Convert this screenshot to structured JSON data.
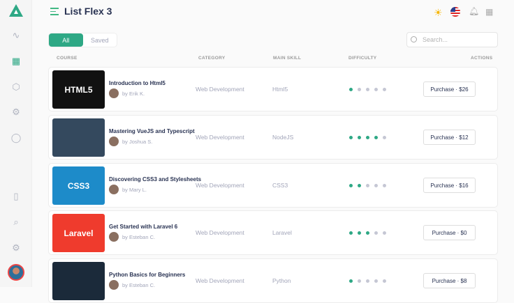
{
  "header": {
    "title": "List Flex 3"
  },
  "tabs": [
    {
      "label": "All",
      "active": true
    },
    {
      "label": "Saved",
      "active": false
    }
  ],
  "search": {
    "placeholder": "Search..."
  },
  "columns": [
    "COURSE",
    "CATEGORY",
    "MAIN SKILL",
    "DIFFICULTY",
    "ACTIONS"
  ],
  "colors": {
    "accent": "#2ea885"
  },
  "courses": [
    {
      "title": "Introduction to Html5",
      "author": "by Erik K.",
      "category": "Web Development",
      "skill": "Html5",
      "difficulty": 1,
      "action": "Purchase · $26",
      "thumb_text": "HTML5",
      "thumb_color": "#111111"
    },
    {
      "title": "Mastering VueJS and Typescript",
      "author": "by Joshua S.",
      "category": "Web Development",
      "skill": "NodeJS",
      "difficulty": 4,
      "action": "Purchase · $12",
      "thumb_text": "",
      "thumb_color": "#34495e"
    },
    {
      "title": "Discovering CSS3 and Stylesheets",
      "author": "by Mary L.",
      "category": "Web Development",
      "skill": "CSS3",
      "difficulty": 2,
      "action": "Purchase · $16",
      "thumb_text": "CSS3",
      "thumb_color": "#1d8bc9"
    },
    {
      "title": "Get Started with Laravel 6",
      "author": "by Esteban C.",
      "category": "Web Development",
      "skill": "Laravel",
      "difficulty": 3,
      "action": "Purchase · $0",
      "thumb_text": "Laravel",
      "thumb_color": "#ef3b2d"
    },
    {
      "title": "Python Basics for Beginners",
      "author": "by Esteban C.",
      "category": "Web Development",
      "skill": "Python",
      "difficulty": 1,
      "action": "Purchase · $8",
      "thumb_text": "",
      "thumb_color": "#1b2a3a"
    }
  ]
}
